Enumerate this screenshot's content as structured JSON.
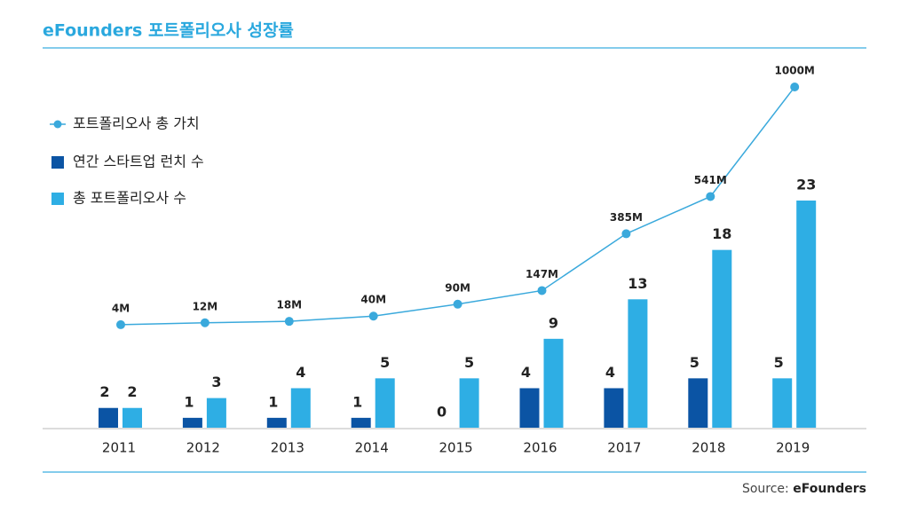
{
  "chart_data": {
    "type": "bar_line",
    "title": "eFounders 포트폴리오사 성장률",
    "categories": [
      "2011",
      "2012",
      "2013",
      "2014",
      "2015",
      "2016",
      "2017",
      "2018",
      "2019"
    ],
    "series": [
      {
        "name": "연간 스타트업 런치 수",
        "type": "bar",
        "color": "#0b54a4",
        "colors": [
          "#0b54a4",
          "#0b54a4",
          "#0b54a4",
          "#0b54a4",
          "#0b54a4",
          "#0b54a4",
          "#0b54a4",
          "#0b54a4",
          "#2eaee4"
        ],
        "values": [
          2,
          1,
          1,
          1,
          0,
          4,
          4,
          5,
          5
        ]
      },
      {
        "name": "총 포트폴리오사 수",
        "type": "bar",
        "color": "#2eaee4",
        "values": [
          2,
          3,
          4,
          5,
          5,
          9,
          13,
          18,
          23
        ]
      },
      {
        "name": "포트폴리오사 총 가치",
        "type": "line",
        "axis": "y2",
        "color": "#3aa9dc",
        "values": [
          4,
          12,
          18,
          40,
          90,
          147,
          385,
          541,
          1000
        ],
        "value_labels": [
          "4M",
          "12M",
          "18M",
          "40M",
          "90M",
          "147M",
          "385M",
          "541M",
          "1000M"
        ]
      }
    ],
    "source_label": "Source:",
    "source_name": "eFounders"
  }
}
